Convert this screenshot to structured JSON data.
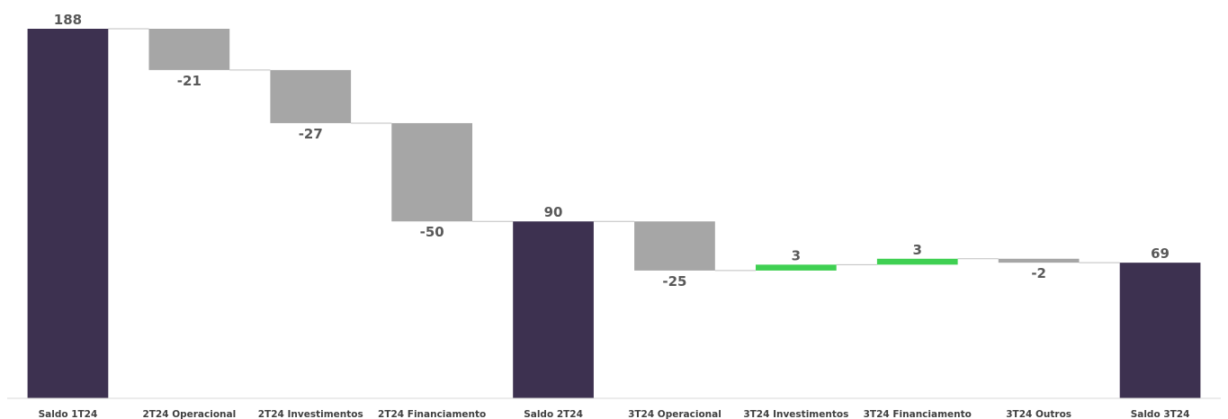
{
  "chart_data": {
    "type": "waterfall",
    "categories": [
      "Saldo 1T24",
      "2T24 Operacional",
      "2T24 Investimentos",
      "2T24 Financiamento",
      "Saldo 2T24",
      "3T24 Operacional",
      "3T24 Investimentos",
      "3T24 Financiamento",
      "3T24 Outros",
      "Saldo 3T24"
    ],
    "values": [
      188,
      -21,
      -27,
      -50,
      90,
      -25,
      3,
      3,
      -2,
      69
    ],
    "labels": [
      "188",
      "-21",
      "-27",
      "-50",
      "90",
      "-25",
      "3",
      "3",
      "-2",
      "69"
    ],
    "kinds": [
      "total",
      "delta",
      "delta",
      "delta",
      "total",
      "delta",
      "delta",
      "delta",
      "delta",
      "total"
    ],
    "ylim": [
      0,
      188
    ],
    "grid": false,
    "legend": "none",
    "colors": {
      "total": "#3d3150",
      "decrease": "#a6a6a6",
      "increase": "#3fd052",
      "connector": "#bfbfbf",
      "axis": "#d9d9d9",
      "label": "#595959",
      "category": "#404040"
    }
  }
}
